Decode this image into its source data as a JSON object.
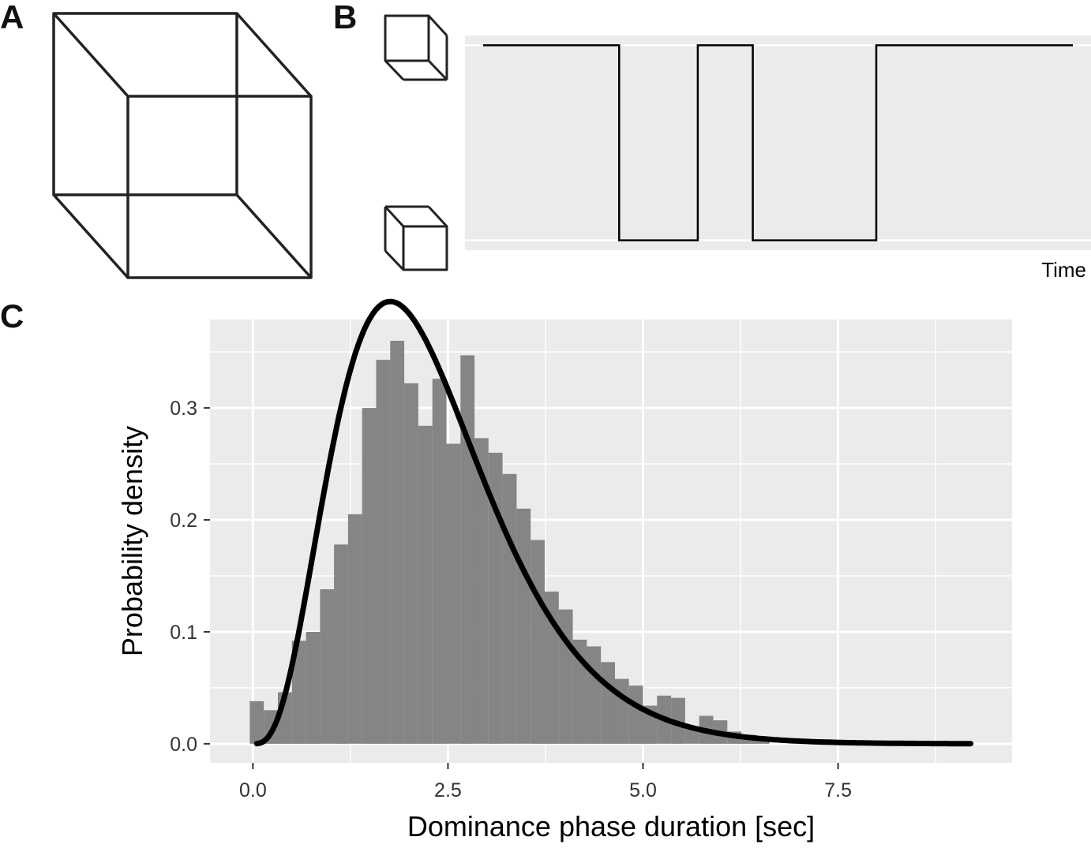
{
  "panels": {
    "a": {
      "label": "A"
    },
    "b": {
      "label": "B",
      "xlabel": "Time"
    },
    "c": {
      "label": "C"
    }
  },
  "chart_data": [
    {
      "type": "line",
      "panel": "B",
      "xlabel": "Time",
      "ylabel": "",
      "states": [
        "cube-view-from-below",
        "cube-view-from-above"
      ],
      "step": true,
      "x": [
        0,
        17.3,
        17.3,
        27.3,
        27.3,
        34.3,
        34.3,
        50.0,
        50.0,
        75
      ],
      "values": [
        1,
        1,
        0,
        0,
        1,
        1,
        0,
        0,
        1,
        1
      ],
      "xlim": [
        -2.3,
        77.3
      ],
      "ylim": [
        -0.05,
        1.05
      ],
      "grid": true,
      "colors": {
        "line": "#000000",
        "panel": "#ebebeb",
        "grid": "#ffffff"
      }
    },
    {
      "type": "bar",
      "panel": "C",
      "xlabel": "Dominance phase duration [sec]",
      "ylabel": "Probability density",
      "bin_width": 0.18,
      "x_start": -0.04,
      "values": [
        0.038,
        0.03,
        0.046,
        0.092,
        0.1,
        0.138,
        0.178,
        0.205,
        0.3,
        0.343,
        0.36,
        0.322,
        0.284,
        0.326,
        0.268,
        0.347,
        0.273,
        0.26,
        0.241,
        0.21,
        0.182,
        0.136,
        0.12,
        0.093,
        0.087,
        0.073,
        0.058,
        0.052,
        0.034,
        0.043,
        0.041,
        0.013,
        0.025,
        0.021,
        0.011,
        0.008,
        0.003
      ],
      "xticks": [
        "0.0",
        "2.5",
        "5.0",
        "7.5"
      ],
      "xtick_values": [
        0,
        2.5,
        5,
        7.5
      ],
      "yticks": [
        "0.0",
        "0.1",
        "0.2",
        "0.3"
      ],
      "ytick_values": [
        0,
        0.1,
        0.2,
        0.3
      ],
      "xlim": [
        -0.55,
        9.73
      ],
      "ylim": [
        -0.017,
        0.379
      ],
      "grid": true,
      "fit_curve": {
        "type": "gamma",
        "shape": 4.2,
        "scale": 0.55,
        "x_range": [
          0.05,
          9.2
        ]
      },
      "colors": {
        "bars": "#7f7f7f",
        "curve": "#000000",
        "panel": "#ebebeb",
        "grid": "#ffffff"
      }
    }
  ]
}
